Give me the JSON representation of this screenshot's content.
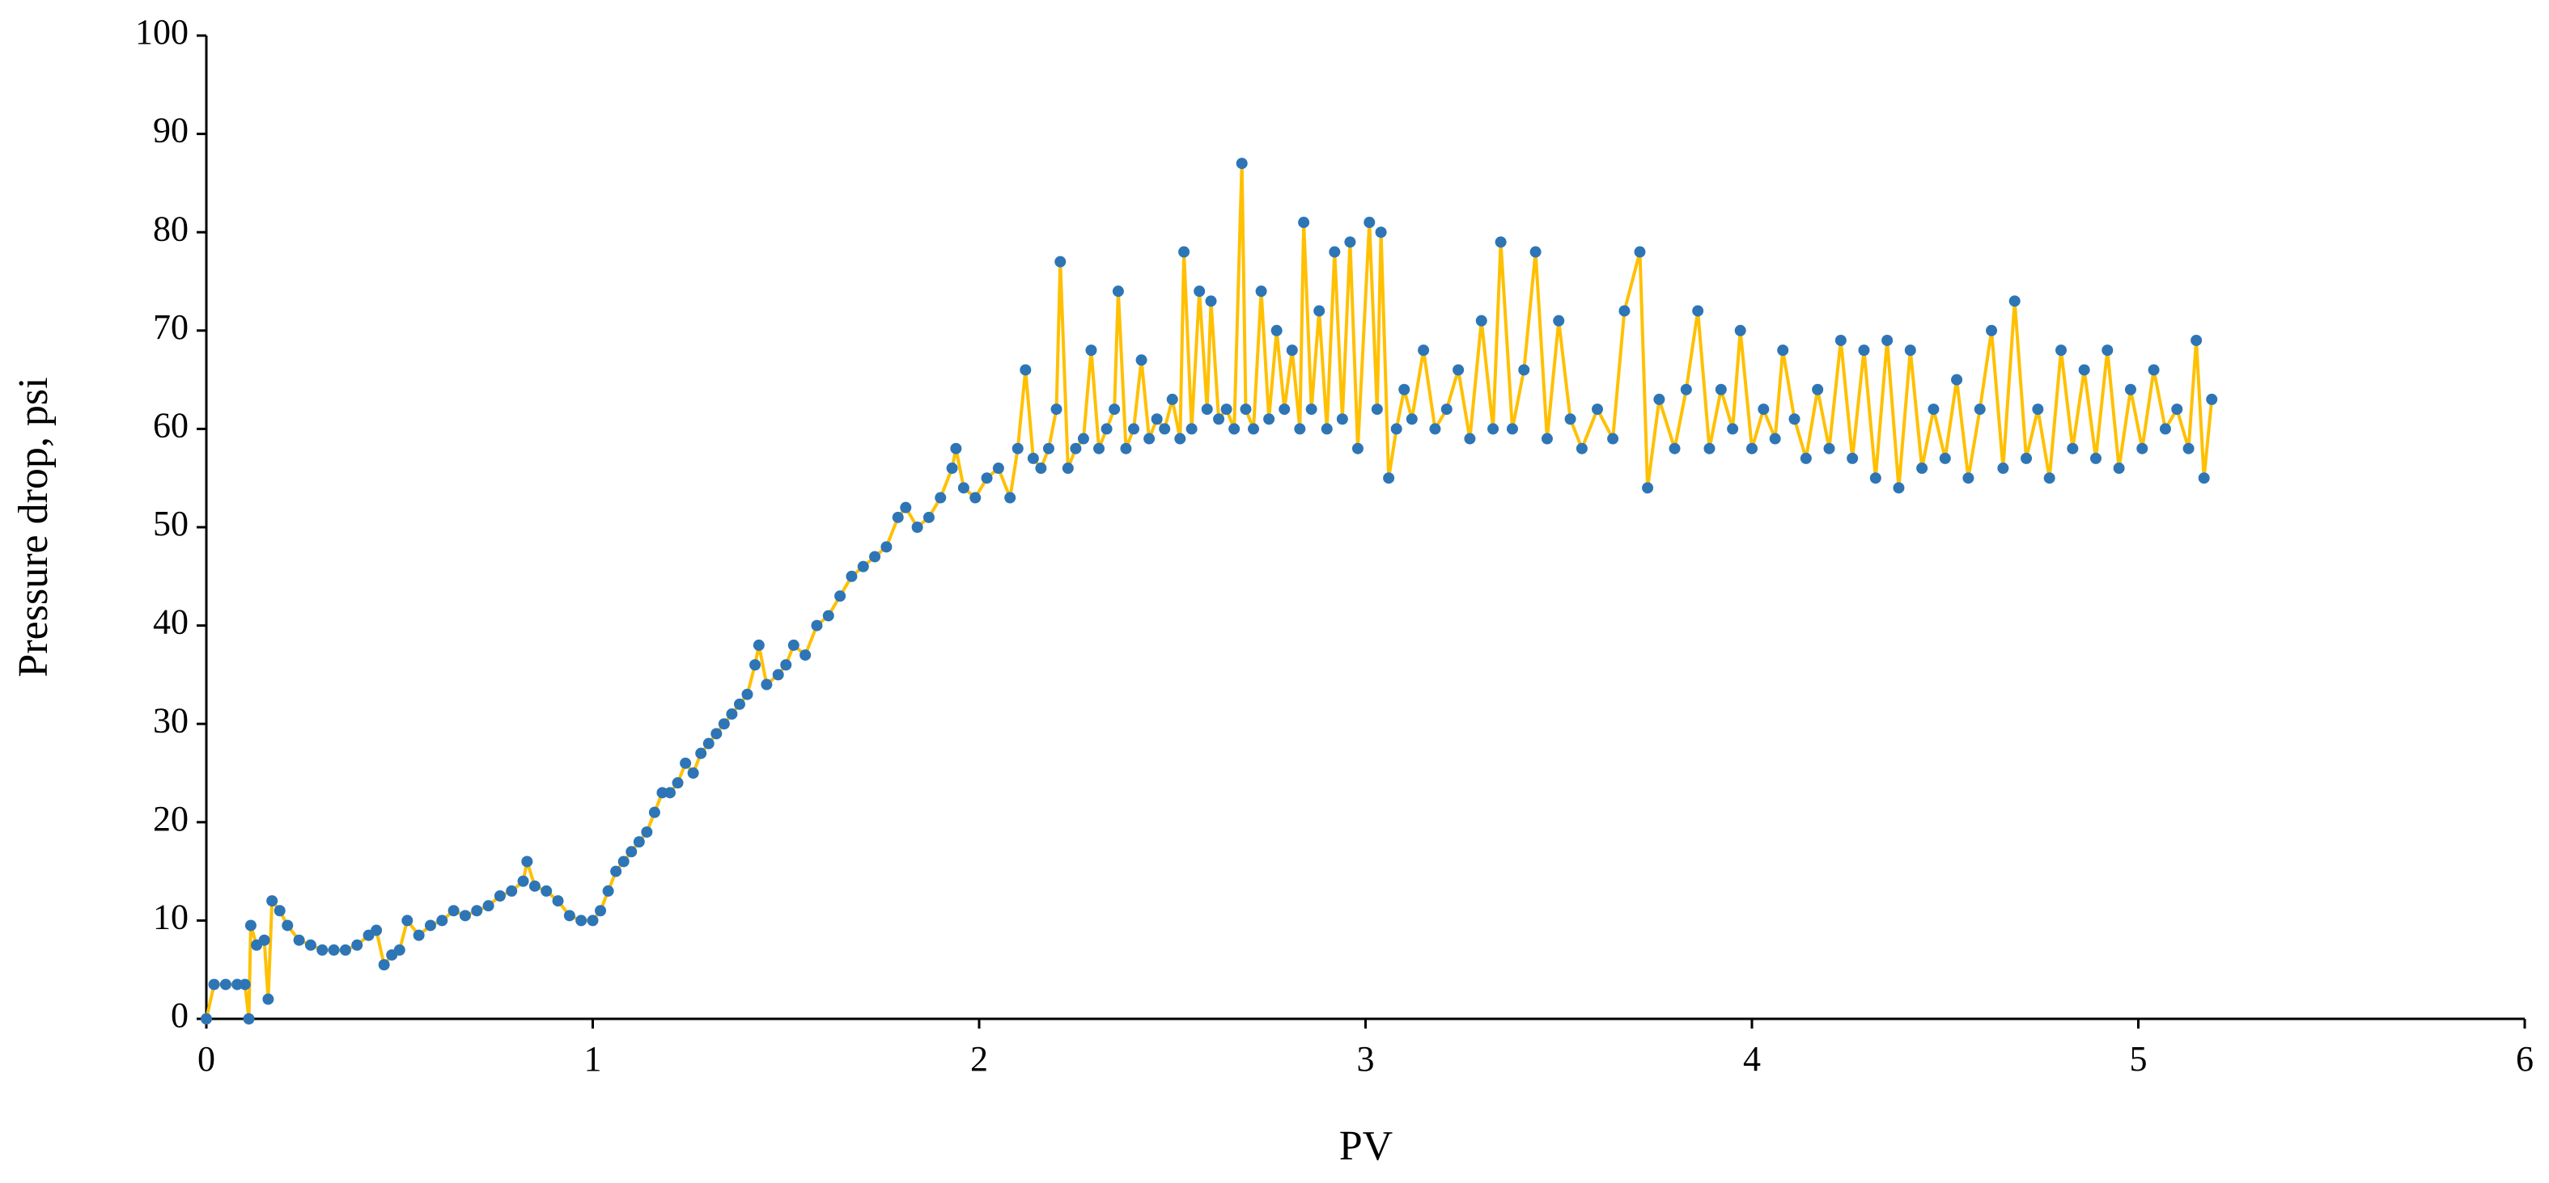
{
  "chart_data": {
    "type": "line",
    "xlabel": "PV",
    "ylabel": "Pressure drop, psi",
    "xlim": [
      0,
      6
    ],
    "xticks": [
      0,
      1,
      2,
      3,
      4,
      5,
      6
    ],
    "ylim": [
      0,
      100
    ],
    "yticks": [
      0,
      10,
      20,
      30,
      40,
      50,
      60,
      70,
      80,
      90,
      100
    ],
    "grid": false,
    "markers": true,
    "x": [
      0,
      0.02,
      0.05,
      0.08,
      0.1,
      0.11,
      0.115,
      0.13,
      0.15,
      0.16,
      0.17,
      0.19,
      0.21,
      0.24,
      0.27,
      0.3,
      0.33,
      0.36,
      0.39,
      0.42,
      0.44,
      0.46,
      0.48,
      0.5,
      0.52,
      0.55,
      0.58,
      0.61,
      0.64,
      0.67,
      0.7,
      0.73,
      0.76,
      0.79,
      0.82,
      0.83,
      0.85,
      0.88,
      0.91,
      0.94,
      0.97,
      1.0,
      1.02,
      1.04,
      1.06,
      1.08,
      1.1,
      1.12,
      1.14,
      1.16,
      1.18,
      1.2,
      1.22,
      1.24,
      1.26,
      1.28,
      1.3,
      1.32,
      1.34,
      1.36,
      1.38,
      1.4,
      1.42,
      1.43,
      1.45,
      1.48,
      1.5,
      1.52,
      1.55,
      1.58,
      1.61,
      1.64,
      1.67,
      1.7,
      1.73,
      1.76,
      1.79,
      1.81,
      1.84,
      1.87,
      1.9,
      1.93,
      1.94,
      1.96,
      1.99,
      2.02,
      2.05,
      2.08,
      2.1,
      2.12,
      2.14,
      2.16,
      2.18,
      2.2,
      2.21,
      2.23,
      2.25,
      2.27,
      2.29,
      2.31,
      2.33,
      2.35,
      2.36,
      2.38,
      2.4,
      2.42,
      2.44,
      2.46,
      2.48,
      2.5,
      2.52,
      2.53,
      2.55,
      2.57,
      2.59,
      2.6,
      2.62,
      2.64,
      2.66,
      2.68,
      2.69,
      2.71,
      2.73,
      2.75,
      2.77,
      2.79,
      2.81,
      2.83,
      2.84,
      2.86,
      2.88,
      2.9,
      2.92,
      2.94,
      2.96,
      2.98,
      3.01,
      3.03,
      3.04,
      3.06,
      3.08,
      3.1,
      3.12,
      3.15,
      3.18,
      3.21,
      3.24,
      3.27,
      3.3,
      3.33,
      3.35,
      3.38,
      3.41,
      3.44,
      3.47,
      3.5,
      3.53,
      3.56,
      3.6,
      3.64,
      3.67,
      3.71,
      3.73,
      3.76,
      3.8,
      3.83,
      3.86,
      3.89,
      3.92,
      3.95,
      3.97,
      4.0,
      4.03,
      4.06,
      4.08,
      4.11,
      4.14,
      4.17,
      4.2,
      4.23,
      4.26,
      4.29,
      4.32,
      4.35,
      4.38,
      4.41,
      4.44,
      4.47,
      4.5,
      4.53,
      4.56,
      4.59,
      4.62,
      4.65,
      4.68,
      4.71,
      4.74,
      4.77,
      4.8,
      4.83,
      4.86,
      4.89,
      4.92,
      4.95,
      4.98,
      5.01,
      5.04,
      5.07,
      5.1,
      5.13,
      5.15,
      5.17,
      5.19
    ],
    "series": [
      {
        "color": "#FFC000",
        "marker_color": "#2E75B6",
        "values": [
          0,
          3.5,
          3.5,
          3.5,
          3.5,
          0,
          9.5,
          7.5,
          8,
          2,
          12,
          11,
          9.5,
          8,
          7.5,
          7,
          7,
          7,
          7.5,
          8.5,
          9,
          5.5,
          6.5,
          7,
          10,
          8.5,
          9.5,
          10,
          11,
          10.5,
          11,
          11.5,
          12.5,
          13,
          14,
          16,
          13.5,
          13,
          12,
          10.5,
          10,
          10,
          11,
          13,
          15,
          16,
          17,
          18,
          19,
          21,
          23,
          23,
          24,
          26,
          25,
          27,
          28,
          29,
          30,
          31,
          32,
          33,
          36,
          38,
          34,
          35,
          36,
          38,
          37,
          40,
          41,
          43,
          45,
          46,
          47,
          48,
          51,
          52,
          50,
          51,
          53,
          56,
          58,
          54,
          53,
          55,
          56,
          53,
          58,
          66,
          57,
          56,
          58,
          62,
          77,
          56,
          58,
          59,
          68,
          58,
          60,
          62,
          74,
          58,
          60,
          67,
          59,
          61,
          60,
          63,
          59,
          78,
          60,
          74,
          62,
          73,
          61,
          62,
          60,
          87,
          62,
          60,
          74,
          61,
          70,
          62,
          68,
          60,
          81,
          62,
          72,
          60,
          78,
          61,
          79,
          58,
          81,
          62,
          80,
          55,
          60,
          64,
          61,
          68,
          60,
          62,
          66,
          59,
          71,
          60,
          79,
          60,
          66,
          78,
          59,
          71,
          61,
          58,
          62,
          59,
          72,
          78,
          54,
          63,
          58,
          64,
          72,
          58,
          64,
          60,
          70,
          58,
          62,
          59,
          68,
          61,
          57,
          64,
          58,
          69,
          57,
          68,
          55,
          69,
          54,
          68,
          56,
          62,
          57,
          65,
          55,
          62,
          70,
          56,
          73,
          57,
          62,
          55,
          68,
          58,
          66,
          57,
          68,
          56,
          64,
          58,
          66,
          60,
          62,
          58,
          69,
          55,
          63
        ]
      }
    ]
  }
}
